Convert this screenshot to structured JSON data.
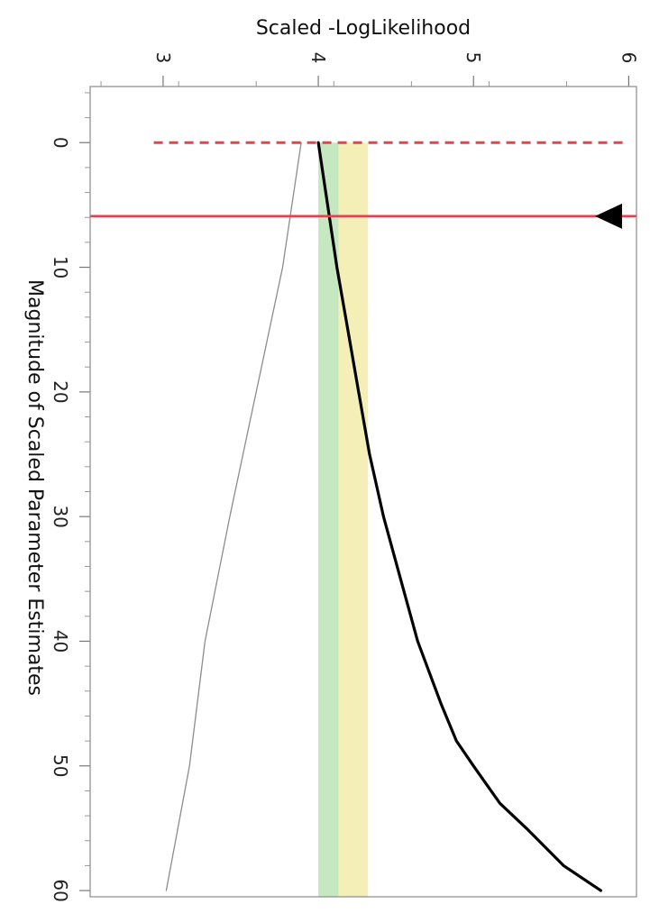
{
  "chart_data": {
    "type": "line",
    "orientation": "rotated-90-clockwise",
    "xlabel": "Magnitude of Scaled Parameter Estimates",
    "ylabel": "Scaled -LogLikelihood",
    "xlim": [
      -4.5,
      60.5
    ],
    "ylim": [
      2.53,
      6.05
    ],
    "x_ticks": [
      0,
      10,
      20,
      30,
      40,
      50,
      60
    ],
    "x_tick_labels": [
      "0",
      "10",
      "20",
      "30",
      "40",
      "50",
      "60"
    ],
    "y_ticks": [
      3,
      4,
      5,
      6
    ],
    "y_tick_labels": [
      "3",
      "4",
      "5",
      "6"
    ],
    "grid": false,
    "series": [
      {
        "role": "validation",
        "color": "#000000",
        "x": [
          0,
          5,
          10,
          15,
          20,
          25,
          30,
          35,
          40,
          45,
          48,
          50,
          53,
          55,
          58,
          60
        ],
        "y": [
          4.0,
          4.06,
          4.12,
          4.19,
          4.26,
          4.33,
          4.42,
          4.53,
          4.64,
          4.79,
          4.89,
          5.0,
          5.17,
          5.34,
          5.58,
          5.82
        ]
      },
      {
        "role": "training",
        "color": "#8c8c8c",
        "x": [
          0,
          10,
          20,
          30,
          40,
          50,
          60
        ],
        "y": [
          3.89,
          3.77,
          3.6,
          3.43,
          3.27,
          3.17,
          3.02
        ]
      }
    ],
    "bands": [
      {
        "role": "green-zone",
        "color": "#c5e8c1",
        "y_range": [
          4.0,
          4.13
        ]
      },
      {
        "role": "yellow-zone",
        "color": "#f3efb6",
        "y_range": [
          4.13,
          4.32
        ]
      }
    ],
    "reference_lines": [
      {
        "role": "dashed-red",
        "axis": "x",
        "value": 0,
        "color": "#e8404e",
        "style": "dashed"
      },
      {
        "role": "solid-red",
        "axis": "x",
        "value": 5.9,
        "color": "#e8404e",
        "style": "solid",
        "marker": "black-triangle"
      }
    ]
  }
}
